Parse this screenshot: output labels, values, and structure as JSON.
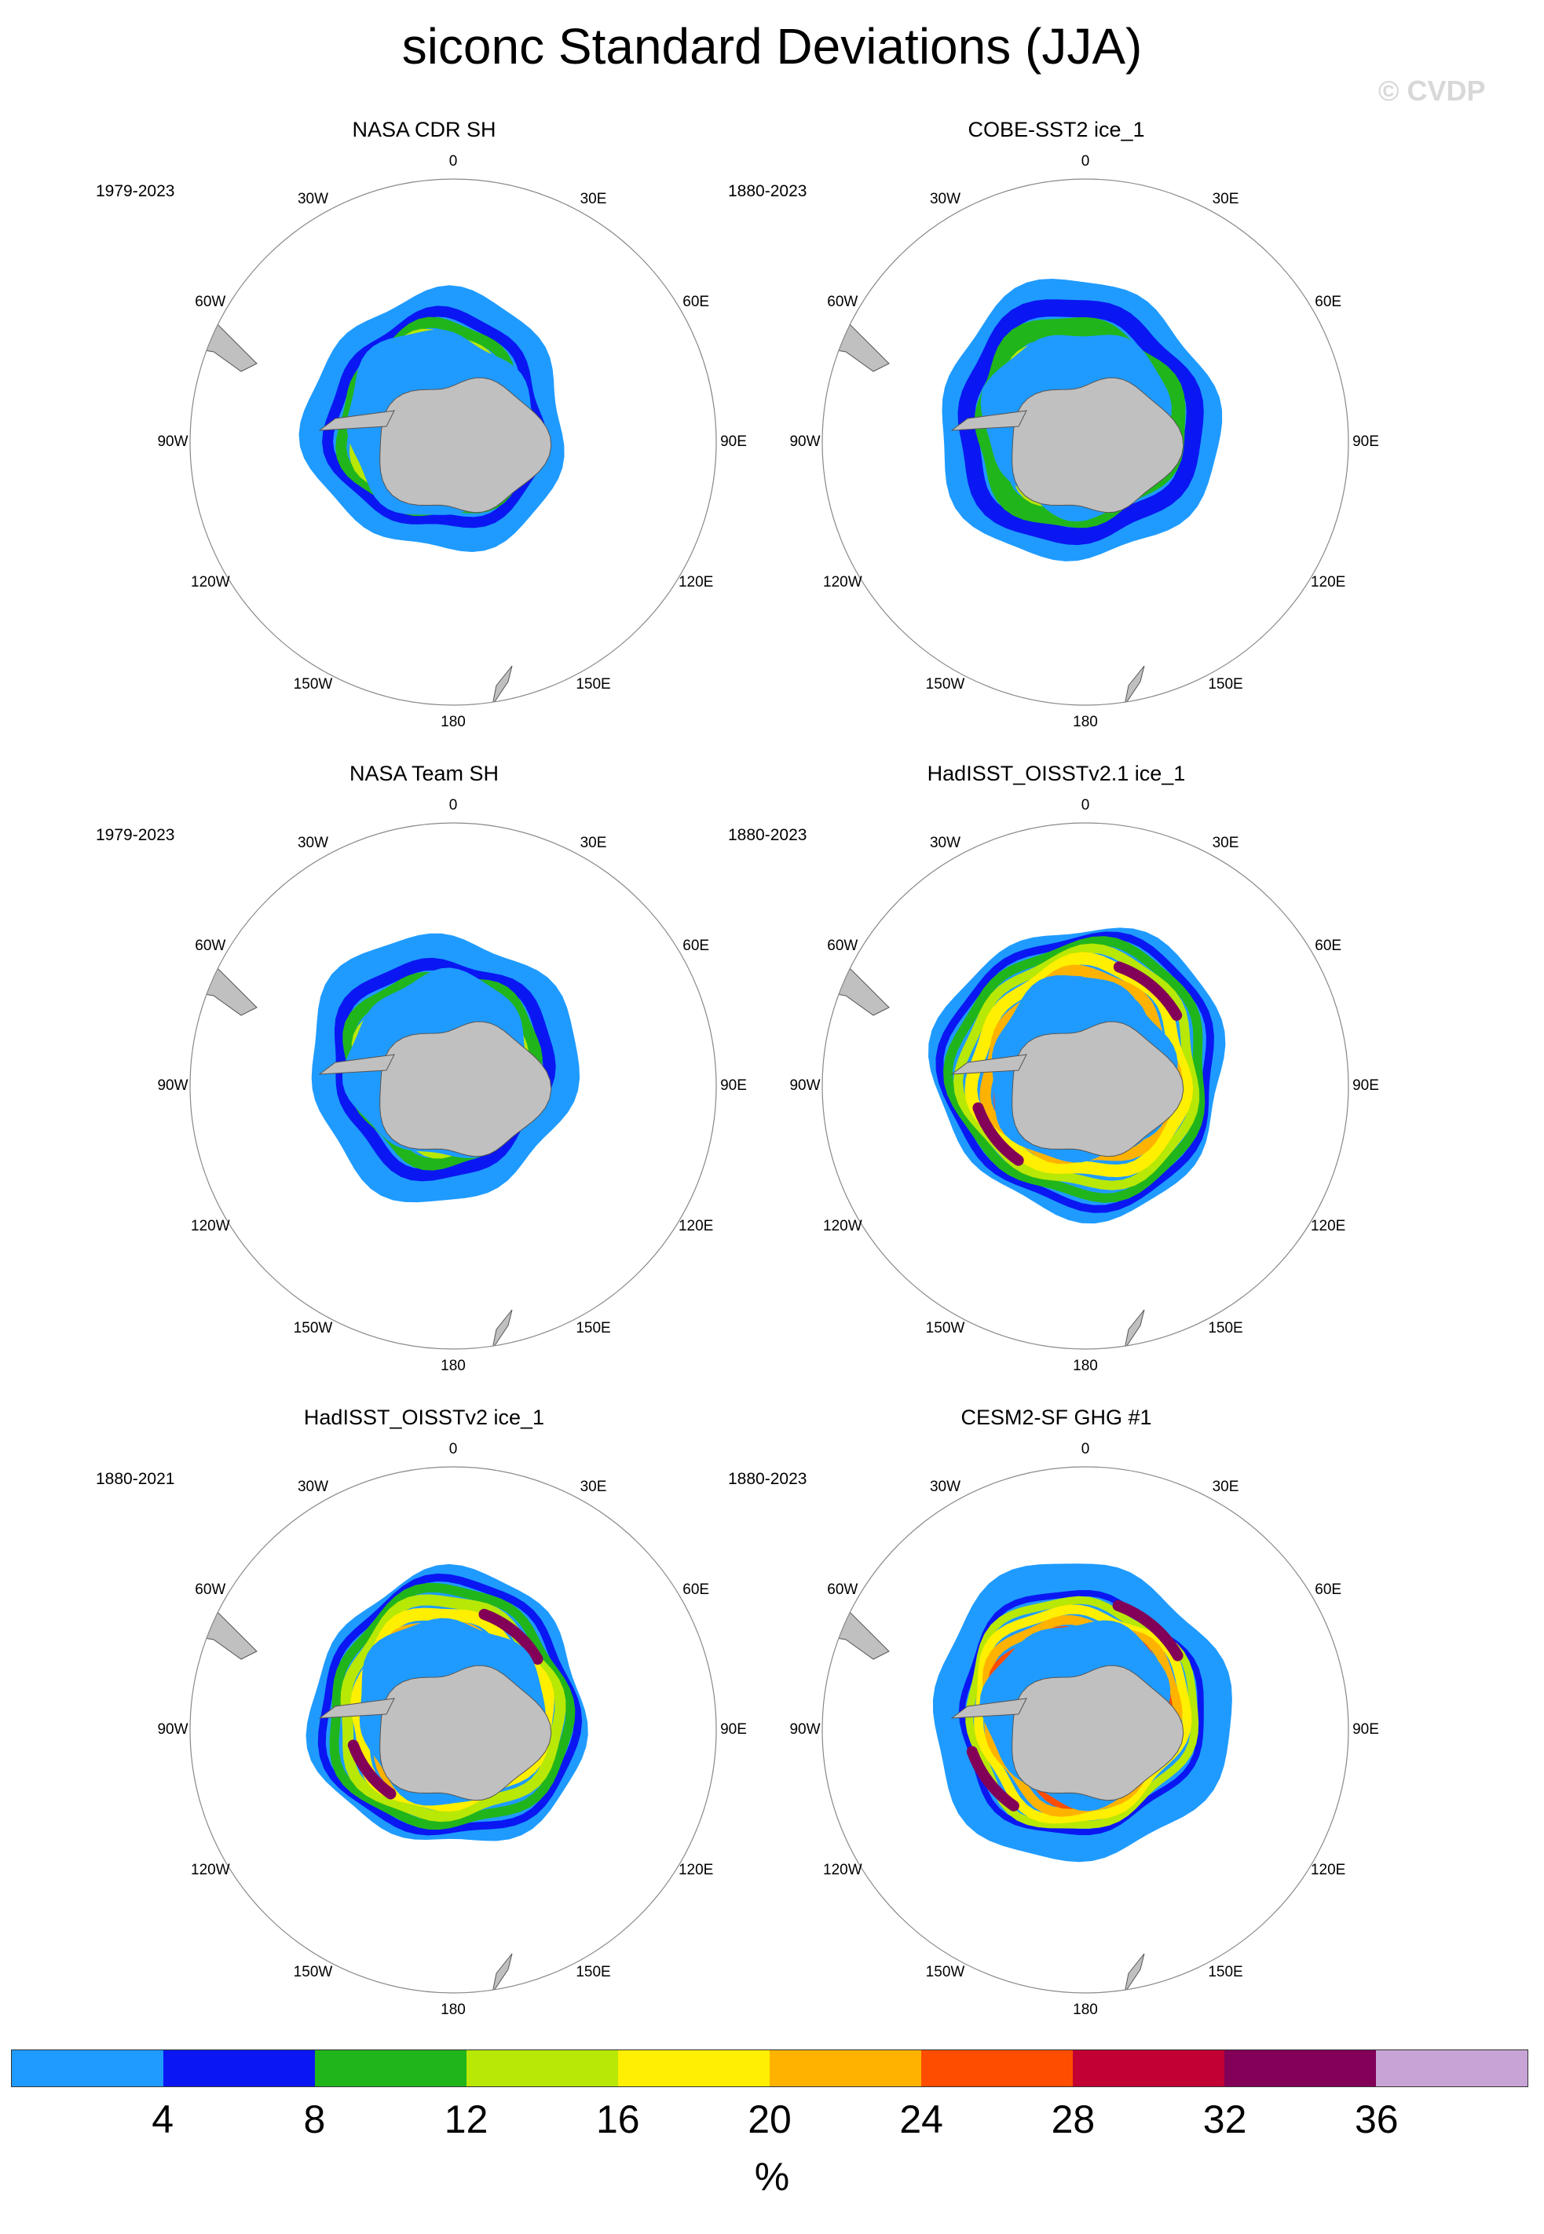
{
  "title": "siconc Standard Deviations (JJA)",
  "watermark": "© CVDP",
  "colors": {
    "land": "#c0c0c0",
    "levels": [
      "#1f9bff",
      "#0a17f2",
      "#21b51c",
      "#b8e805",
      "#ffef00",
      "#ffb300",
      "#ff4d00",
      "#c20033",
      "#820058",
      "#c8a4d6"
    ]
  },
  "longitude_labels": [
    "0",
    "30E",
    "60E",
    "90E",
    "120E",
    "150E",
    "180",
    "150W",
    "120W",
    "90W",
    "60W",
    "30W"
  ],
  "panels": [
    {
      "title": "NASA CDR SH",
      "period": "1979-2023",
      "pattern": "cdr"
    },
    {
      "title": "COBE-SST2 ice_1",
      "period": "1880-2023",
      "pattern": "cobe"
    },
    {
      "title": "NASA Team SH",
      "period": "1979-2023",
      "pattern": "team"
    },
    {
      "title": "HadISST_OISSTv2.1 ice_1",
      "period": "1880-2023",
      "pattern": "had21"
    },
    {
      "title": "HadISST_OISSTv2 ice_1",
      "period": "1880-2021",
      "pattern": "had2"
    },
    {
      "title": "CESM2-SF GHG #1",
      "period": "1880-2023",
      "pattern": "cesm"
    }
  ],
  "colorbar": {
    "ticks": [
      "4",
      "8",
      "12",
      "16",
      "20",
      "24",
      "28",
      "32",
      "36"
    ],
    "unit": "%"
  }
}
